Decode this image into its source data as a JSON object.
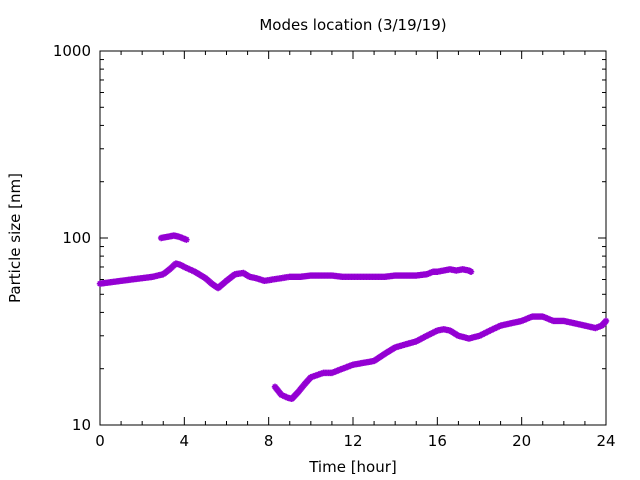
{
  "chart_data": {
    "type": "scatter",
    "title": "Modes location (3/19/19)",
    "xlabel": "Time [hour]",
    "ylabel": "Particle size [nm]",
    "xlim": [
      0,
      24
    ],
    "ylim": [
      10,
      1000
    ],
    "yscale": "log",
    "grid": false,
    "xticks": [
      0,
      4,
      8,
      12,
      16,
      20,
      24
    ],
    "xtick_labels": [
      "0",
      "4",
      "8",
      "12",
      "16",
      "20",
      "24"
    ],
    "yticks": [
      10,
      100,
      1000
    ],
    "ytick_labels": [
      "10",
      "100",
      "1000"
    ],
    "marker_color": "#9400d3",
    "series": [
      {
        "values_x": [
          0.0,
          0.5,
          1.0,
          1.5,
          2.0,
          2.5,
          3.0,
          3.3,
          3.6,
          3.8,
          4.0,
          4.5,
          5.0,
          5.3,
          5.6,
          6.0,
          6.4,
          6.8,
          7.1,
          7.4,
          7.6,
          7.8,
          8.2,
          8.6,
          9.0,
          9.5,
          10.0,
          10.5,
          11.0,
          11.5,
          12.0,
          12.5,
          13.0,
          13.5,
          14.0,
          14.5,
          15.0,
          15.5,
          15.8,
          16.0,
          16.3,
          16.6,
          16.9,
          17.2,
          17.5,
          17.6
        ],
        "values_y": [
          57,
          58,
          59,
          60,
          61,
          62,
          64,
          68,
          73,
          72,
          70,
          66,
          61,
          57,
          54,
          59,
          64,
          65,
          62,
          61,
          60,
          59,
          60,
          61,
          62,
          62,
          63,
          63,
          63,
          62,
          62,
          62,
          62,
          62,
          63,
          63,
          63,
          64,
          66,
          66,
          67,
          68,
          67,
          68,
          67,
          66
        ]
      },
      {
        "values_x": [
          2.9,
          3.1,
          3.3,
          3.5,
          3.7,
          3.9,
          4.1
        ],
        "values_y": [
          100,
          101,
          102,
          103,
          102,
          100,
          98
        ]
      },
      {
        "values_x": [
          8.3,
          8.6,
          8.9,
          9.1,
          9.4,
          9.7,
          10.0,
          10.3,
          10.6,
          11.0,
          11.5,
          12.0,
          12.5,
          13.0,
          13.5,
          14.0,
          14.5,
          15.0,
          15.5,
          16.0,
          16.3,
          16.6,
          17.0,
          17.5,
          18.0,
          18.5,
          19.0,
          19.5,
          20.0,
          20.5,
          21.0,
          21.5,
          22.0,
          22.5,
          23.0,
          23.5,
          23.8,
          24.0
        ],
        "values_y": [
          16,
          14.5,
          14,
          13.8,
          15,
          16.5,
          18,
          18.5,
          19,
          19,
          20,
          21,
          21.5,
          22,
          24,
          26,
          27,
          28,
          30,
          32,
          32.5,
          32,
          30,
          29,
          30,
          32,
          34,
          35,
          36,
          38,
          38,
          36,
          36,
          35,
          34,
          33,
          34,
          36
        ]
      }
    ]
  }
}
